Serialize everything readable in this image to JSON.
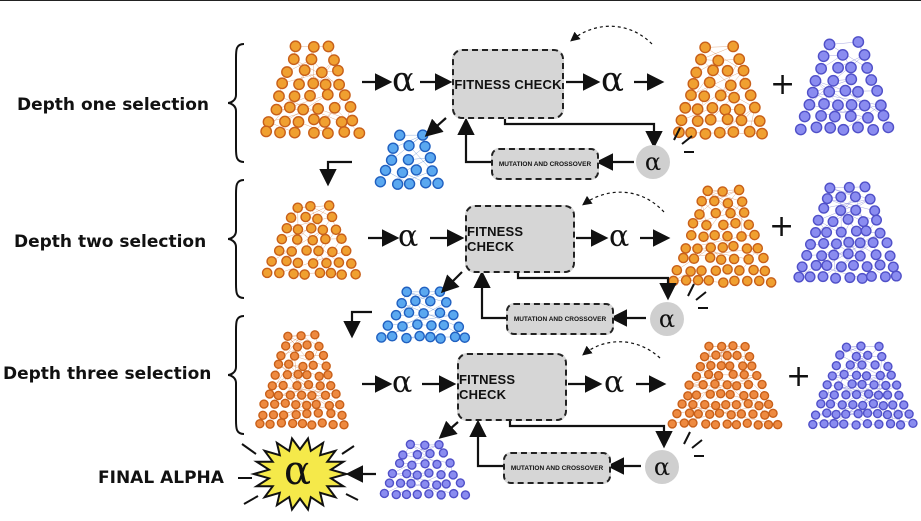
{
  "stages": [
    {
      "label": "Depth one selection"
    },
    {
      "label": "Depth two selection"
    },
    {
      "label": "Depth three selection"
    }
  ],
  "final_label": "FINAL ALPHA",
  "fitness_label": "FITNESS CHECK",
  "mutation_label": "MUTATION AND CROSSOVER",
  "alpha_symbol": "α",
  "plus_symbol": "+",
  "colors": {
    "orange_fill": "#f0a030",
    "orange_edge": "#c8601a",
    "blue_fill": "#8a8cf0",
    "blue_edge": "#5050c8",
    "light_blue_fill": "#5aa8f0",
    "light_blue_edge": "#2060c0",
    "box_fill": "#d6d6d6",
    "burst_fill": "#f5e94a"
  }
}
